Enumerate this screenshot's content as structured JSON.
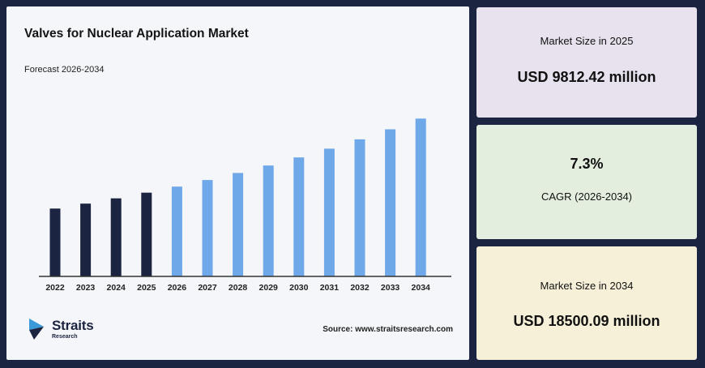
{
  "colors": {
    "historical_bar": "#1b2440",
    "forecast_bar": "#6fa8e8",
    "background": "#1b2440"
  },
  "icons": {
    "logo": "straits-logo-icon"
  },
  "chart_data": {
    "type": "bar",
    "title": "Valves for Nuclear Application Market",
    "subtitle": "Forecast 2026-2034",
    "categories": [
      "2022",
      "2023",
      "2024",
      "2025",
      "2026",
      "2027",
      "2028",
      "2029",
      "2030",
      "2031",
      "2032",
      "2033",
      "2034"
    ],
    "values": [
      7950,
      8530,
      9150,
      9812.42,
      10530,
      11300,
      12120,
      13000,
      13950,
      14970,
      16060,
      17240,
      18500.09
    ],
    "historical_count": 4,
    "xlabel": "",
    "ylabel": "",
    "ylim": [
      0,
      19000
    ],
    "grid": false,
    "legend": "none"
  },
  "logo": {
    "name": "Straits",
    "sub": "Research"
  },
  "source": "Source: www.straitsresearch.com",
  "cards": [
    {
      "label": "Market Size in 2025",
      "value": "USD 9812.42 million"
    },
    {
      "value": "7.3%",
      "label": "CAGR (2026-2034)"
    },
    {
      "label": "Market Size in 2034",
      "value": "USD 18500.09 million"
    }
  ]
}
